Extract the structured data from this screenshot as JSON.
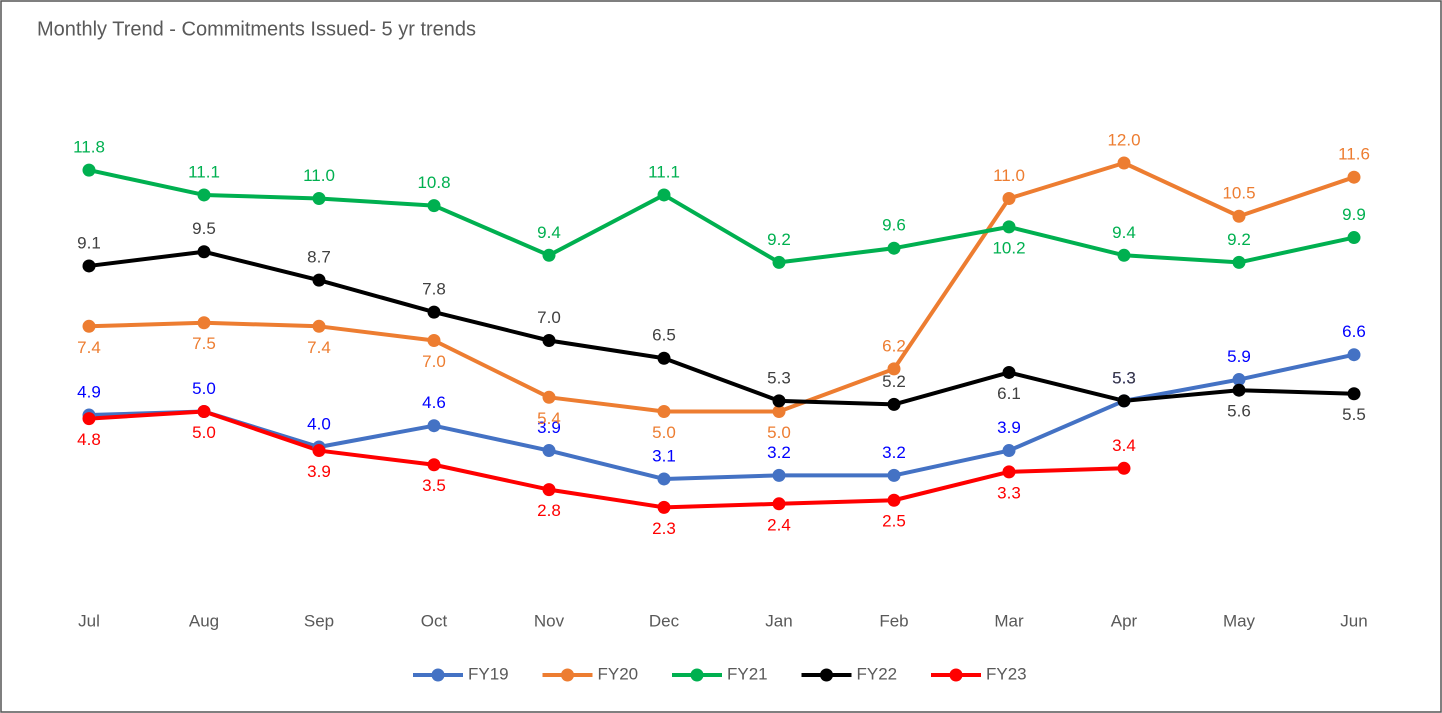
{
  "chart_data": {
    "type": "line",
    "title": "Monthly Trend - Commitments Issued- 5 yr trends",
    "categories": [
      "Jul",
      "Aug",
      "Sep",
      "Oct",
      "Nov",
      "Dec",
      "Jan",
      "Feb",
      "Mar",
      "Apr",
      "May",
      "Jun"
    ],
    "series": [
      {
        "name": "FY19",
        "color": "#4472c4",
        "label_color": "#0000ff",
        "values": [
          4.9,
          5.0,
          4.0,
          4.6,
          3.9,
          3.1,
          3.2,
          3.2,
          3.9,
          5.3,
          5.9,
          6.6
        ],
        "value_labels": [
          "4.9",
          "5.0",
          "4.0",
          "4.6",
          "3.9",
          "3.1",
          "3.2",
          "3.2",
          "3.9",
          "5.3",
          "5.9",
          "6.6"
        ]
      },
      {
        "name": "FY20",
        "color": "#ed7d31",
        "label_color": "#ed7d31",
        "values": [
          7.4,
          7.5,
          7.4,
          7.0,
          5.4,
          5.0,
          5.0,
          6.2,
          11.0,
          12.0,
          10.5,
          11.6
        ],
        "value_labels": [
          "7.4",
          "7.5",
          "7.4",
          "7.0",
          "5.4",
          "5.0",
          "5.0",
          "6.2",
          "11.0",
          "12.0",
          "10.5",
          "11.6"
        ]
      },
      {
        "name": "FY21",
        "color": "#00b050",
        "label_color": "#00b050",
        "values": [
          11.8,
          11.1,
          11.0,
          10.8,
          9.4,
          11.1,
          9.2,
          9.6,
          10.2,
          9.4,
          9.2,
          9.9
        ],
        "value_labels": [
          "11.8",
          "11.1",
          "11.0",
          "10.8",
          "9.4",
          "11.1",
          "9.2",
          "9.6",
          "10.2",
          "9.4",
          "9.2",
          "9.9"
        ]
      },
      {
        "name": "FY22",
        "color": "#000000",
        "label_color": "#404040",
        "values": [
          9.1,
          9.5,
          8.7,
          7.8,
          7.0,
          6.5,
          5.3,
          5.2,
          6.1,
          5.3,
          5.6,
          5.5
        ],
        "value_labels": [
          "9.1",
          "9.5",
          "8.7",
          "7.8",
          "7.0",
          "6.5",
          "5.3",
          "5.2",
          "6.1",
          "5.3",
          "5.6",
          "5.5"
        ]
      },
      {
        "name": "FY23",
        "color": "#ff0000",
        "label_color": "#ff0000",
        "values": [
          4.8,
          5.0,
          3.9,
          3.5,
          2.8,
          2.3,
          2.4,
          2.5,
          3.3,
          3.4,
          null,
          null
        ],
        "value_labels": [
          "4.8",
          "5.0",
          "3.9",
          "3.5",
          "2.8",
          "2.3",
          "2.4",
          "2.5",
          "3.3",
          "3.4",
          null,
          null
        ]
      }
    ]
  }
}
